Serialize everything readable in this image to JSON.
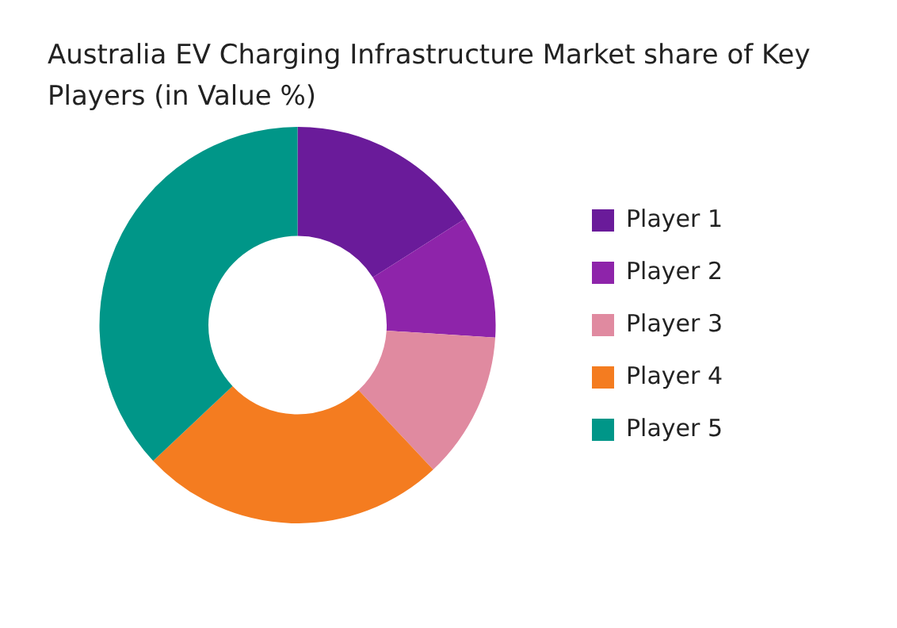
{
  "chart_data": {
    "type": "donut",
    "title": "Australia EV Charging Infrastructure Market share of Key Players (in Value %)",
    "categories": [
      "Player 1",
      "Player 2",
      "Player 3",
      "Player 4",
      "Player 5"
    ],
    "values": [
      16,
      10,
      12,
      25,
      37
    ],
    "colors": [
      "#6a1b9a",
      "#8e24aa",
      "#e08aa0",
      "#f47c20",
      "#009688"
    ],
    "legend": "right"
  }
}
